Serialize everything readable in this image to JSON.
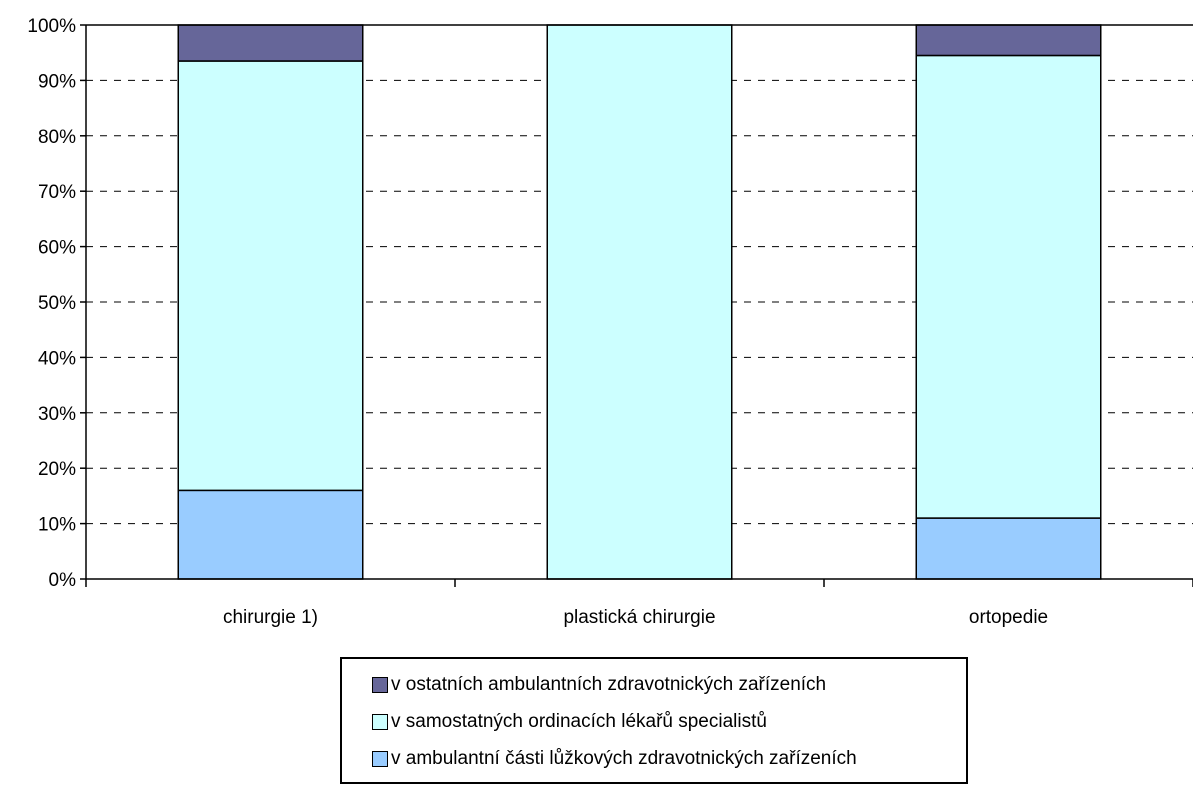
{
  "chart_data": {
    "type": "bar",
    "stacked": "percent",
    "categories": [
      "chirurgie 1)",
      "plastická chirurgie",
      "ortopedie"
    ],
    "series": [
      {
        "name": "v ambulantní části lůžkových zdravotnických zařízeních",
        "values": [
          16,
          0,
          11
        ],
        "color": "#99CCFF"
      },
      {
        "name": "v samostatných ordinacích lékařů specialistů",
        "values": [
          77.5,
          100,
          83.5
        ],
        "color": "#CCFFFF"
      },
      {
        "name": "v ostatních ambulantních zdravotnických zařízeních",
        "values": [
          6.5,
          0,
          5.5
        ],
        "color": "#666699"
      }
    ],
    "y_ticks": [
      "0%",
      "10%",
      "20%",
      "30%",
      "40%",
      "50%",
      "60%",
      "70%",
      "80%",
      "90%",
      "100%"
    ],
    "ylim": [
      0,
      100
    ],
    "grid": "horizontal dashed",
    "legend_position": "bottom"
  }
}
